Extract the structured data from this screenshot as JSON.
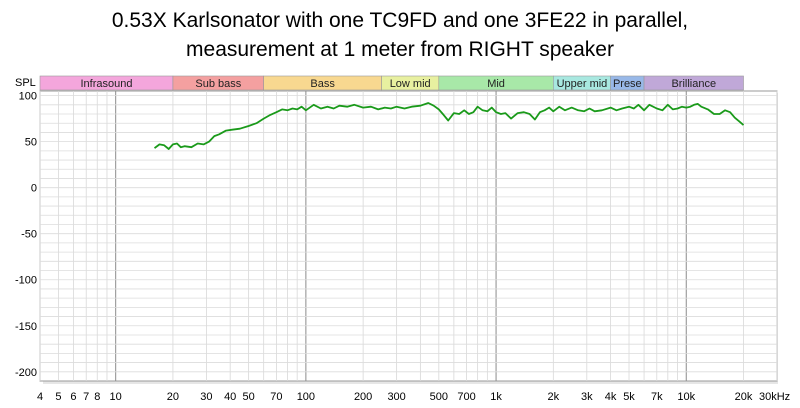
{
  "chart_data": {
    "type": "line",
    "title_lines": [
      "0.53X Karlsonator with one TC9FD and one 3FE22 in parallel,",
      "measurement at 1 meter from RIGHT speaker"
    ],
    "ylabel": "SPL",
    "xlabel": "",
    "x_unit_label": "30kHz",
    "x_scale": "log",
    "xlim": [
      4,
      30000
    ],
    "ylim": [
      -210,
      105
    ],
    "grid": true,
    "y_ticks": [
      100,
      50,
      0,
      -50,
      -100,
      -150,
      -200
    ],
    "y_tick_labels": [
      "100",
      "50",
      "0",
      "-50",
      "-100",
      "-150",
      "-200"
    ],
    "x_ticks": [
      4,
      5,
      6,
      7,
      8,
      10,
      20,
      30,
      40,
      50,
      70,
      100,
      200,
      300,
      500,
      700,
      1000,
      2000,
      3000,
      4000,
      5000,
      7000,
      10000,
      20000
    ],
    "x_tick_labels": [
      "4",
      "5",
      "6",
      "7",
      "8",
      "10",
      "20",
      "30",
      "40",
      "50",
      "70",
      "100",
      "200",
      "300",
      "500",
      "700",
      "1k",
      "2k",
      "3k",
      "4k",
      "5k",
      "7k",
      "10k",
      "20k"
    ],
    "bands": [
      {
        "label": "Infrasound",
        "from": 4,
        "to": 20,
        "color": "#f4a6dc"
      },
      {
        "label": "Sub bass",
        "from": 20,
        "to": 60,
        "color": "#f4a0a0"
      },
      {
        "label": "Bass",
        "from": 60,
        "to": 250,
        "color": "#f8d890"
      },
      {
        "label": "Low mid",
        "from": 250,
        "to": 500,
        "color": "#e8f0a0"
      },
      {
        "label": "Mid",
        "from": 500,
        "to": 2000,
        "color": "#a8e8a8"
      },
      {
        "label": "Upper mid",
        "from": 2000,
        "to": 4000,
        "color": "#a8e8e0"
      },
      {
        "label": "Prese",
        "from": 4000,
        "to": 6000,
        "color": "#98b8e8"
      },
      {
        "label": "Brilliance",
        "from": 6000,
        "to": 20000,
        "color": "#c0a8d8"
      }
    ],
    "series": [
      {
        "color": "#1a9a1a",
        "x": [
          16,
          17,
          18,
          19,
          20,
          21,
          22,
          23,
          25,
          27,
          29,
          31,
          33,
          35,
          38,
          41,
          45,
          50,
          55,
          60,
          65,
          70,
          75,
          80,
          85,
          90,
          95,
          100,
          110,
          120,
          130,
          140,
          150,
          165,
          180,
          200,
          220,
          240,
          260,
          280,
          300,
          330,
          360,
          400,
          440,
          470,
          500,
          530,
          560,
          600,
          640,
          680,
          720,
          760,
          800,
          850,
          900,
          950,
          1000,
          1060,
          1120,
          1200,
          1300,
          1400,
          1500,
          1600,
          1700,
          1800,
          1900,
          2000,
          2150,
          2300,
          2500,
          2700,
          2900,
          3100,
          3300,
          3600,
          4000,
          4300,
          4600,
          5000,
          5300,
          5600,
          6000,
          6400,
          7000,
          7500,
          8000,
          8500,
          9000,
          9500,
          10000,
          10500,
          11000,
          11500,
          12000,
          13000,
          14000,
          15000,
          16000,
          17000,
          18000,
          19000,
          20000
        ],
        "y": [
          43,
          47,
          46,
          42,
          47,
          48,
          44,
          45,
          44,
          48,
          47,
          50,
          56,
          58,
          62,
          63,
          64,
          67,
          70,
          75,
          79,
          82,
          85,
          84,
          86,
          85,
          88,
          84,
          90,
          86,
          88,
          86,
          89,
          88,
          90,
          87,
          88,
          85,
          87,
          86,
          88,
          86,
          88,
          89,
          92,
          89,
          85,
          79,
          73,
          81,
          80,
          84,
          80,
          82,
          88,
          84,
          83,
          87,
          82,
          80,
          81,
          75,
          81,
          82,
          80,
          74,
          82,
          84,
          87,
          83,
          88,
          84,
          87,
          84,
          83,
          86,
          83,
          84,
          87,
          84,
          86,
          88,
          86,
          90,
          84,
          90,
          86,
          84,
          90,
          85,
          86,
          88,
          87,
          88,
          90,
          91,
          88,
          85,
          80,
          80,
          84,
          82,
          76,
          72,
          68
        ]
      }
    ]
  }
}
